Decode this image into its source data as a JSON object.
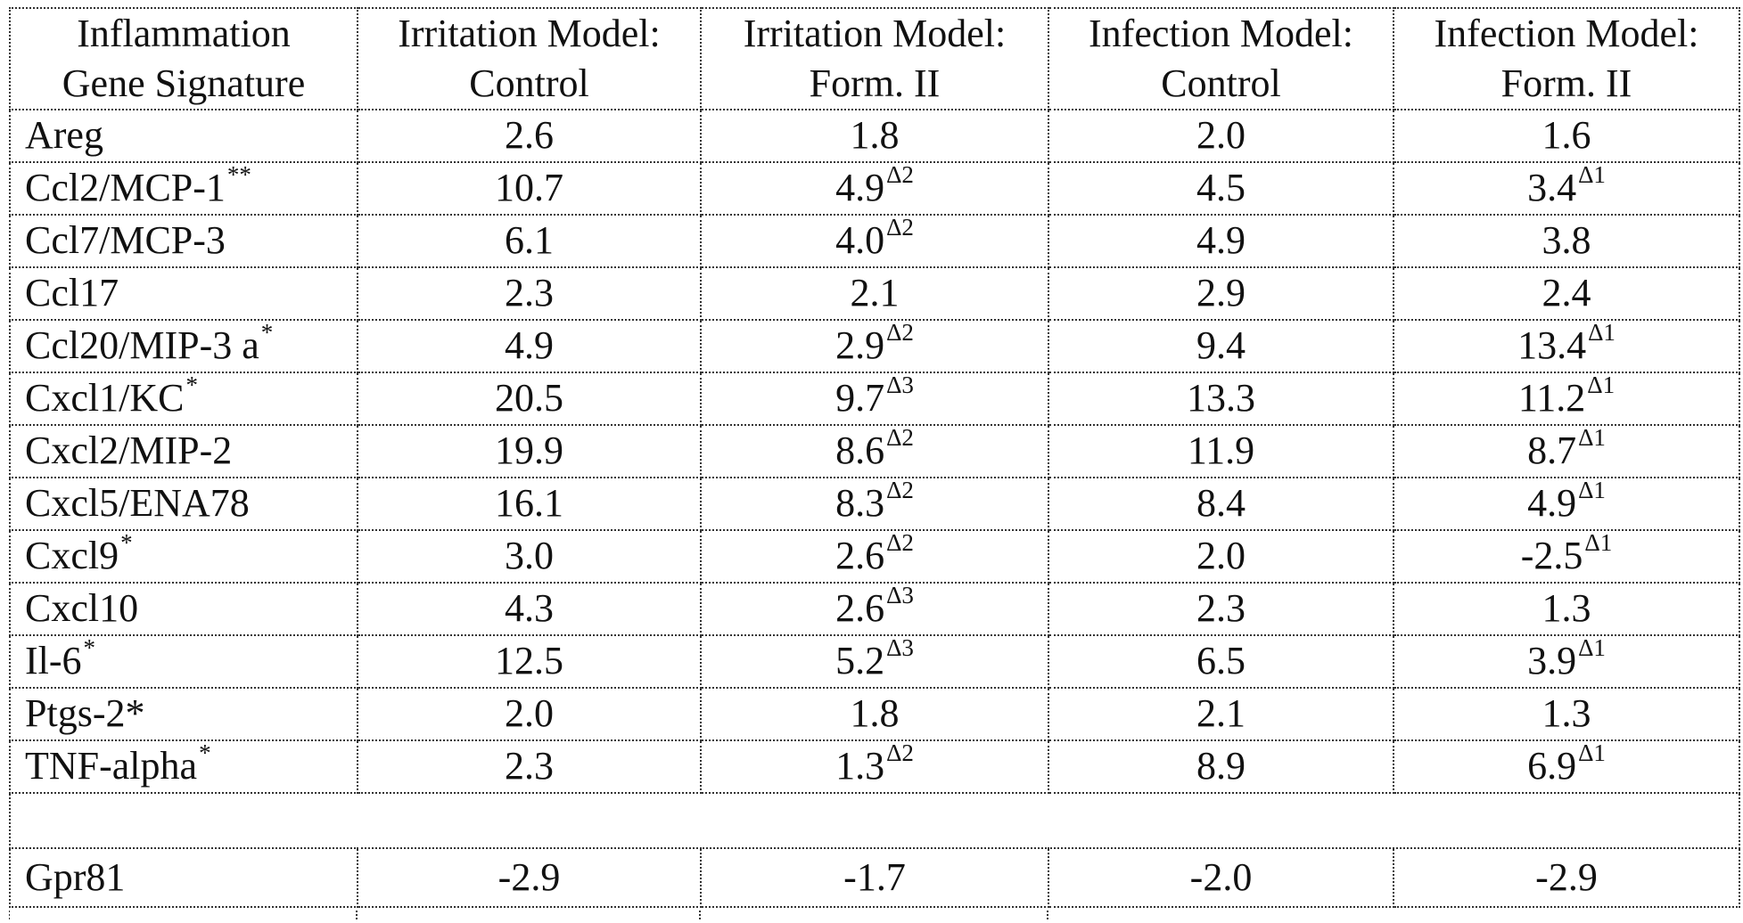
{
  "table": {
    "headers": [
      [
        "Inflammation",
        "Gene Signature"
      ],
      [
        "Irritation Model:",
        "Control"
      ],
      [
        "Irritation Model:",
        "Form. II"
      ],
      [
        "Infection Model:",
        "Control"
      ],
      [
        "Infection Model:",
        "Form. II"
      ]
    ],
    "rows": [
      {
        "gene": "Areg",
        "gene_sup": "",
        "c1": "2.6",
        "c2": "1.8",
        "c2_sup": "",
        "c3": "2.0",
        "c4": "1.6",
        "c4_sup": ""
      },
      {
        "gene": "Ccl2/MCP-1",
        "gene_sup": "**",
        "c1": "10.7",
        "c2": "4.9",
        "c2_sup": "Δ2",
        "c3": "4.5",
        "c4": "3.4",
        "c4_sup": "Δ1"
      },
      {
        "gene": "Ccl7/MCP-3",
        "gene_sup": "",
        "c1": "6.1",
        "c2": "4.0",
        "c2_sup": "Δ2",
        "c3": "4.9",
        "c4": "3.8",
        "c4_sup": ""
      },
      {
        "gene": "Ccl17",
        "gene_sup": "",
        "c1": "2.3",
        "c2": "2.1",
        "c2_sup": "",
        "c3": "2.9",
        "c4": "2.4",
        "c4_sup": ""
      },
      {
        "gene": "Ccl20/MIP-3 a",
        "gene_sup": "*",
        "c1": "4.9",
        "c2": "2.9",
        "c2_sup": "Δ2",
        "c3": "9.4",
        "c4": "13.4",
        "c4_sup": "Δ1"
      },
      {
        "gene": "Cxcl1/KC",
        "gene_sup": "*",
        "c1": "20.5",
        "c2": "9.7",
        "c2_sup": "Δ3",
        "c3": "13.3",
        "c4": "11.2",
        "c4_sup": "Δ1"
      },
      {
        "gene": "Cxcl2/MIP-2",
        "gene_sup": "",
        "c1": "19.9",
        "c2": "8.6",
        "c2_sup": "Δ2",
        "c3": "11.9",
        "c4": "8.7",
        "c4_sup": "Δ1"
      },
      {
        "gene": "Cxcl5/ENA78",
        "gene_sup": "",
        "c1": "16.1",
        "c2": "8.3",
        "c2_sup": "Δ2",
        "c3": "8.4",
        "c4": "4.9",
        "c4_sup": "Δ1"
      },
      {
        "gene": "Cxcl9",
        "gene_sup": "*",
        "c1": "3.0",
        "c2": "2.6",
        "c2_sup": "Δ2",
        "c3": "2.0",
        "c4": "-2.5",
        "c4_sup": "Δ1"
      },
      {
        "gene": "Cxcl10",
        "gene_sup": "",
        "c1": "4.3",
        "c2": "2.6",
        "c2_sup": "Δ3",
        "c3": "2.3",
        "c4": "1.3",
        "c4_sup": ""
      },
      {
        "gene": "Il-6",
        "gene_sup": "*",
        "c1": "12.5",
        "c2": "5.2",
        "c2_sup": "Δ3",
        "c3": "6.5",
        "c4": "3.9",
        "c4_sup": "Δ1"
      },
      {
        "gene": "Ptgs-2*",
        "gene_sup": "",
        "c1": "2.0",
        "c2": "1.8",
        "c2_sup": "",
        "c3": "2.1",
        "c4": "1.3",
        "c4_sup": ""
      },
      {
        "gene": "TNF-alpha",
        "gene_sup": "*",
        "c1": "2.3",
        "c2": "1.3",
        "c2_sup": "Δ2",
        "c3": "8.9",
        "c4": "6.9",
        "c4_sup": "Δ1"
      }
    ],
    "last_row": {
      "gene": "Gpr81",
      "c1": "-2.9",
      "c2": "-1.7",
      "c3": "-2.0",
      "c4": "-2.9"
    }
  }
}
